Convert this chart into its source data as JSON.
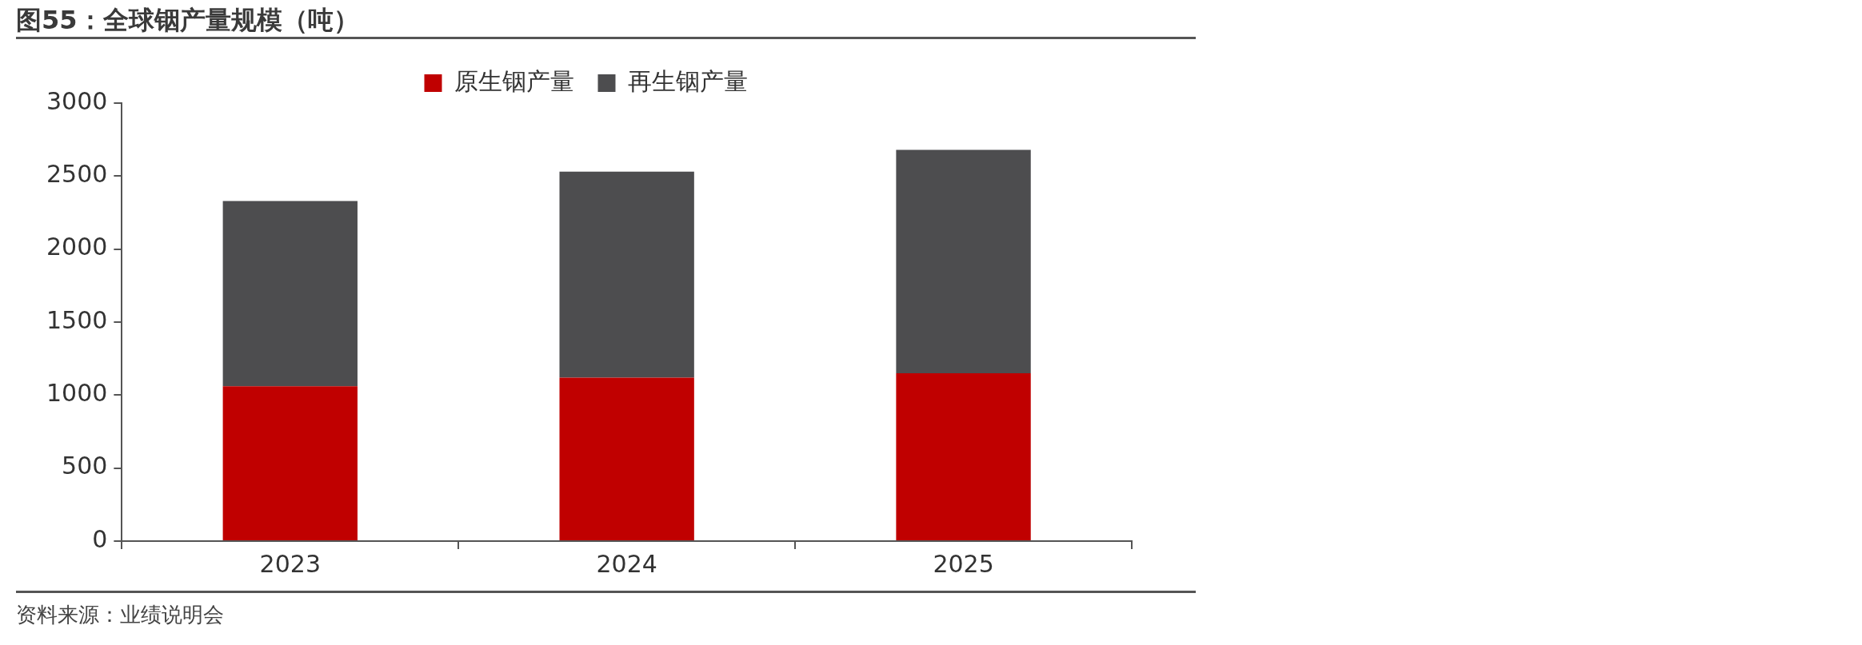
{
  "chart_data": {
    "type": "bar",
    "title": "图55：全球铟产量规模（吨）",
    "categories": [
      "2023",
      "2024",
      "2025"
    ],
    "stacked": true,
    "series": [
      {
        "name": "原生铟产量",
        "color": "#c00000",
        "values": [
          1060,
          1120,
          1150
        ]
      },
      {
        "name": "再生铟产量",
        "color": "#4d4d4f",
        "values": [
          1270,
          1410,
          1530
        ]
      }
    ],
    "ylim": [
      0,
      3000
    ],
    "yticks": [
      0,
      500,
      1000,
      1500,
      2000,
      2500,
      3000
    ],
    "grid": false,
    "legend": "top",
    "annotations": [
      "资料来源：业绩说明会"
    ]
  }
}
